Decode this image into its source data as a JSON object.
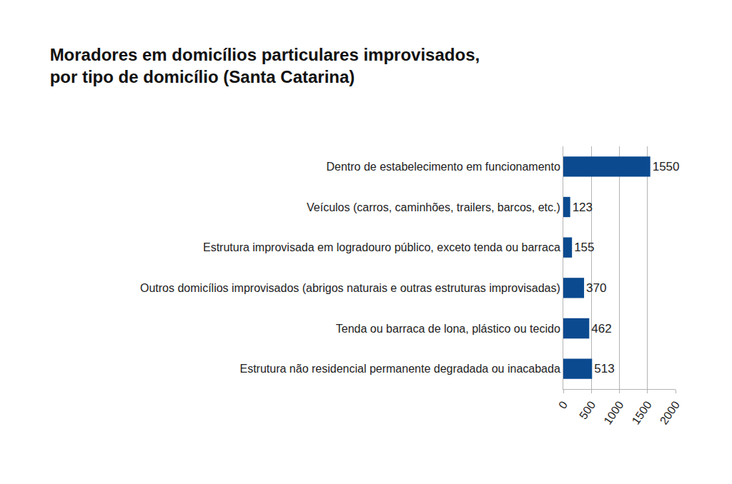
{
  "chart_data": {
    "type": "bar",
    "orientation": "horizontal",
    "title": "Moradores em domicílios particulares improvisados,\npor tipo de domicílio (Santa Catarina)",
    "categories": [
      "Dentro de estabelecimento em funcionamento",
      "Veículos (carros, caminhões, trailers, barcos, etc.)",
      "Estrutura improvisada em logradouro público, exceto tenda ou barraca",
      "Outros domicílios improvisados (abrigos naturais e outras estruturas improvisadas)",
      "Tenda ou barraca de lona, plástico ou tecido",
      "Estrutura não residencial permanente degradada ou inacabada"
    ],
    "values": [
      1550,
      123,
      155,
      370,
      462,
      513
    ],
    "color": "#0b4a8f",
    "xlim": [
      0,
      2000
    ],
    "xticks": [
      0,
      500,
      1000,
      1500,
      2000
    ],
    "grid": true,
    "data_labels": true
  }
}
